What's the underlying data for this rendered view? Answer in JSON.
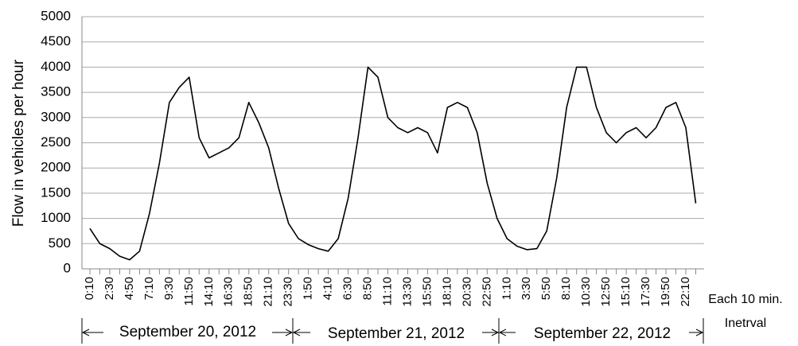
{
  "chart_data": {
    "type": "line",
    "y_label": "Flow in vehicles per hour",
    "x_note": [
      "Each 10 min.",
      "Inetrval"
    ],
    "date_labels": [
      "September 20, 2012",
      "September 21, 2012",
      "September 22, 2012"
    ],
    "categories": [
      "0:10",
      null,
      "2:30",
      null,
      "4:50",
      null,
      "7:10",
      null,
      "9:30",
      null,
      "11:50",
      null,
      "14:10",
      null,
      "16:30",
      null,
      "18:50",
      null,
      "21:10",
      null,
      "23:30",
      null,
      "1:50",
      null,
      "4:10",
      null,
      "6:30",
      null,
      "8:50",
      null,
      "11:10",
      null,
      "13:30",
      null,
      "15:50",
      null,
      "18:10",
      null,
      "20:30",
      null,
      "22:50",
      null,
      "1:10",
      null,
      "3:30",
      null,
      "5:50",
      null,
      "8:10",
      null,
      "10:30",
      null,
      "12:50",
      null,
      "15:10",
      null,
      "17:30",
      null,
      "19:50",
      null,
      "22:10",
      null
    ],
    "values": [
      800,
      500,
      400,
      250,
      180,
      350,
      1100,
      2100,
      3300,
      3600,
      3800,
      2600,
      2200,
      2300,
      2400,
      2600,
      3300,
      2900,
      2400,
      1600,
      900,
      600,
      480,
      400,
      350,
      600,
      1400,
      2600,
      4000,
      3800,
      3000,
      2800,
      2700,
      2800,
      2700,
      2300,
      3200,
      3300,
      3200,
      2700,
      1700,
      1000,
      600,
      450,
      380,
      400,
      750,
      1800,
      3200,
      4000,
      4000,
      3200,
      2700,
      2500,
      2700,
      2800,
      2600,
      2800,
      3200,
      3300,
      2800,
      1300
    ],
    "color": "#000000",
    "ylim": [
      0,
      5000
    ],
    "yticks": [
      0,
      500,
      1000,
      1500,
      2000,
      2500,
      3000,
      3500,
      4000,
      4500,
      5000
    ],
    "grid": true
  }
}
